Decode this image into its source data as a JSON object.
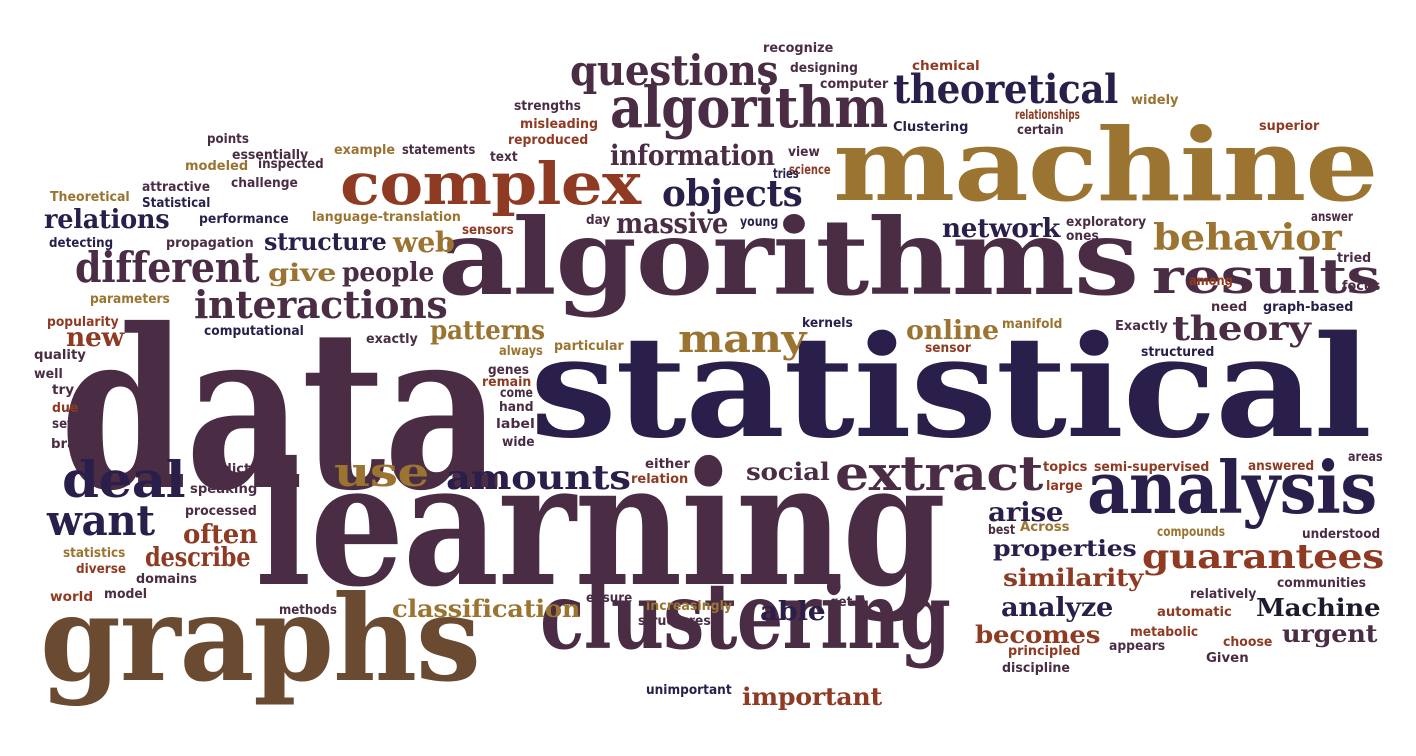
{
  "colors": {
    "plum": "#4a2d44",
    "navy": "#2a1f4a",
    "gold": "#9a7430",
    "rust": "#8f3a22",
    "brown": "#6a4a30",
    "dark": "#1e1a2e"
  },
  "words": [
    {
      "text": "data",
      "color": "plum"
    },
    {
      "text": "statistical",
      "color": "navy"
    },
    {
      "text": "learning",
      "color": "plum"
    },
    {
      "text": "algorithms",
      "color": "plum"
    },
    {
      "text": "machine",
      "color": "gold"
    },
    {
      "text": "graphs",
      "color": "brown"
    },
    {
      "text": "clustering",
      "color": "plum"
    },
    {
      "text": "analysis",
      "color": "navy"
    },
    {
      "text": "algorithm",
      "color": "plum"
    },
    {
      "text": "complex",
      "color": "rust"
    },
    {
      "text": "results",
      "color": "plum"
    },
    {
      "text": "extract",
      "color": "plum"
    },
    {
      "text": "questions",
      "color": "plum"
    },
    {
      "text": "theoretical",
      "color": "navy"
    },
    {
      "text": "different",
      "color": "plum"
    },
    {
      "text": "interactions",
      "color": "plum"
    },
    {
      "text": "deal",
      "color": "navy"
    },
    {
      "text": "want",
      "color": "navy"
    },
    {
      "text": "behavior",
      "color": "gold"
    },
    {
      "text": "theory",
      "color": "plum"
    },
    {
      "text": "guarantees",
      "color": "rust"
    },
    {
      "text": "many",
      "color": "gold"
    },
    {
      "text": "objects",
      "color": "navy"
    },
    {
      "text": "use",
      "color": "gold"
    },
    {
      "text": "amounts",
      "color": "navy"
    },
    {
      "text": "information",
      "color": "plum"
    },
    {
      "text": "massive",
      "color": "plum"
    },
    {
      "text": "relations",
      "color": "navy"
    },
    {
      "text": "structure",
      "color": "navy"
    },
    {
      "text": "web",
      "color": "gold"
    },
    {
      "text": "give",
      "color": "gold"
    },
    {
      "text": "people",
      "color": "plum"
    },
    {
      "text": "network",
      "color": "navy"
    },
    {
      "text": "patterns",
      "color": "gold"
    },
    {
      "text": "new",
      "color": "rust"
    },
    {
      "text": "online",
      "color": "gold"
    },
    {
      "text": "often",
      "color": "rust"
    },
    {
      "text": "describe",
      "color": "rust"
    },
    {
      "text": "social",
      "color": "plum"
    },
    {
      "text": "arise",
      "color": "navy"
    },
    {
      "text": "properties",
      "color": "navy"
    },
    {
      "text": "similarity",
      "color": "rust"
    },
    {
      "text": "analyze",
      "color": "navy"
    },
    {
      "text": "becomes",
      "color": "rust"
    },
    {
      "text": "Machine",
      "color": "dark"
    },
    {
      "text": "urgent",
      "color": "plum"
    },
    {
      "text": "classification",
      "color": "gold"
    },
    {
      "text": "able",
      "color": "navy"
    },
    {
      "text": "important",
      "color": "rust"
    },
    {
      "text": "recognize",
      "color": "plum"
    },
    {
      "text": "designing",
      "color": "plum"
    },
    {
      "text": "chemical",
      "color": "rust"
    },
    {
      "text": "computer",
      "color": "plum"
    },
    {
      "text": "science",
      "color": "rust"
    },
    {
      "text": "strengths",
      "color": "plum"
    },
    {
      "text": "widely",
      "color": "gold"
    },
    {
      "text": "misleading",
      "color": "rust"
    },
    {
      "text": "relationships",
      "color": "rust"
    },
    {
      "text": "Clustering",
      "color": "navy"
    },
    {
      "text": "certain",
      "color": "plum"
    },
    {
      "text": "superior",
      "color": "rust"
    },
    {
      "text": "reproduced",
      "color": "rust"
    },
    {
      "text": "points",
      "color": "plum"
    },
    {
      "text": "essentially",
      "color": "plum"
    },
    {
      "text": "example",
      "color": "gold"
    },
    {
      "text": "statements",
      "color": "plum"
    },
    {
      "text": "text",
      "color": "plum"
    },
    {
      "text": "view",
      "color": "plum"
    },
    {
      "text": "modeled",
      "color": "gold"
    },
    {
      "text": "inspected",
      "color": "plum"
    },
    {
      "text": "tries",
      "color": "navy"
    },
    {
      "text": "challenge",
      "color": "plum"
    },
    {
      "text": "Theoretical",
      "color": "gold"
    },
    {
      "text": "attractive",
      "color": "plum"
    },
    {
      "text": "Statistical",
      "color": "navy"
    },
    {
      "text": "performance",
      "color": "navy"
    },
    {
      "text": "language-translation",
      "color": "gold"
    },
    {
      "text": "day",
      "color": "plum"
    },
    {
      "text": "young",
      "color": "navy"
    },
    {
      "text": "exploratory",
      "color": "plum"
    },
    {
      "text": "ones",
      "color": "plum"
    },
    {
      "text": "answer",
      "color": "plum"
    },
    {
      "text": "detecting",
      "color": "navy"
    },
    {
      "text": "propagation",
      "color": "plum"
    },
    {
      "text": "sensors",
      "color": "rust"
    },
    {
      "text": "tried",
      "color": "plum"
    },
    {
      "text": "among",
      "color": "rust"
    },
    {
      "text": "focus",
      "color": "plum"
    },
    {
      "text": "parameters",
      "color": "gold"
    },
    {
      "text": "need",
      "color": "plum"
    },
    {
      "text": "graph-based",
      "color": "navy"
    },
    {
      "text": "popularity",
      "color": "rust"
    },
    {
      "text": "kernels",
      "color": "navy"
    },
    {
      "text": "manifold",
      "color": "gold"
    },
    {
      "text": "Exactly",
      "color": "plum"
    },
    {
      "text": "computational",
      "color": "navy"
    },
    {
      "text": "exactly",
      "color": "plum"
    },
    {
      "text": "particular",
      "color": "gold"
    },
    {
      "text": "sensor",
      "color": "rust"
    },
    {
      "text": "structured",
      "color": "navy"
    },
    {
      "text": "quality",
      "color": "plum"
    },
    {
      "text": "always",
      "color": "gold"
    },
    {
      "text": "genes",
      "color": "plum"
    },
    {
      "text": "well",
      "color": "plum"
    },
    {
      "text": "remain",
      "color": "rust"
    },
    {
      "text": "try",
      "color": "plum"
    },
    {
      "text": "come",
      "color": "plum"
    },
    {
      "text": "due",
      "color": "rust"
    },
    {
      "text": "hand",
      "color": "plum"
    },
    {
      "text": "set",
      "color": "plum"
    },
    {
      "text": "label",
      "color": "plum"
    },
    {
      "text": "brain",
      "color": "plum"
    },
    {
      "text": "wide",
      "color": "plum"
    },
    {
      "text": "predict",
      "color": "plum"
    },
    {
      "text": "either",
      "color": "plum"
    },
    {
      "text": "relation",
      "color": "rust"
    },
    {
      "text": "topics",
      "color": "rust"
    },
    {
      "text": "semi-supervised",
      "color": "rust"
    },
    {
      "text": "answered",
      "color": "rust"
    },
    {
      "text": "areas",
      "color": "plum"
    },
    {
      "text": "speaking",
      "color": "plum"
    },
    {
      "text": "large",
      "color": "rust"
    },
    {
      "text": "processed",
      "color": "plum"
    },
    {
      "text": "best",
      "color": "plum"
    },
    {
      "text": "Across",
      "color": "gold"
    },
    {
      "text": "compounds",
      "color": "gold"
    },
    {
      "text": "understood",
      "color": "plum"
    },
    {
      "text": "statistics",
      "color": "gold"
    },
    {
      "text": "diverse",
      "color": "rust"
    },
    {
      "text": "domains",
      "color": "plum"
    },
    {
      "text": "communities",
      "color": "plum"
    },
    {
      "text": "world",
      "color": "rust"
    },
    {
      "text": "model",
      "color": "plum"
    },
    {
      "text": "ensure",
      "color": "plum"
    },
    {
      "text": "relatively",
      "color": "plum"
    },
    {
      "text": "get",
      "color": "plum"
    },
    {
      "text": "increasingly",
      "color": "gold"
    },
    {
      "text": "automatic",
      "color": "rust"
    },
    {
      "text": "methods",
      "color": "plum"
    },
    {
      "text": "structures",
      "color": "plum"
    },
    {
      "text": "metabolic",
      "color": "rust"
    },
    {
      "text": "choose",
      "color": "rust"
    },
    {
      "text": "principled",
      "color": "rust"
    },
    {
      "text": "appears",
      "color": "plum"
    },
    {
      "text": "Given",
      "color": "plum"
    },
    {
      "text": "discipline",
      "color": "plum"
    },
    {
      "text": "unimportant",
      "color": "navy"
    }
  ]
}
